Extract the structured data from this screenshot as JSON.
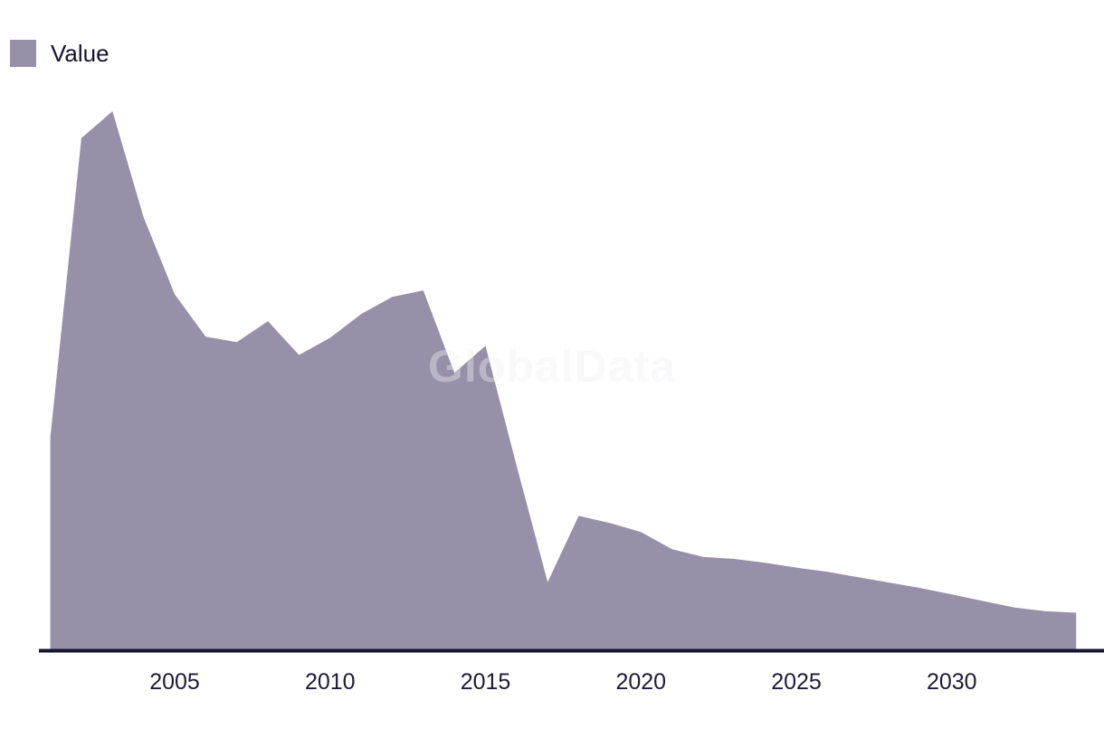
{
  "watermark": "GlobalData",
  "legend": {
    "label": "Value",
    "swatch_color": "#9790a8"
  },
  "colors": {
    "background": "#ffffff",
    "area_fill": "#9790a8",
    "axis_line": "#171430",
    "tick_text": "#1e1c35",
    "legend_text": "#15132a",
    "watermark_text": "rgba(240,238,245,0.40)"
  },
  "x_axis": {
    "tick_labels": [
      "2005",
      "2010",
      "2015",
      "2020",
      "2025",
      "2030"
    ]
  },
  "chart_data": {
    "type": "area",
    "title": "",
    "xlabel": "",
    "ylabel": "",
    "grid": false,
    "legend_position": "top-left",
    "xlim": [
      2001,
      2034
    ],
    "ylim": [
      0,
      100
    ],
    "x_ticks": [
      2005,
      2010,
      2015,
      2020,
      2025,
      2030
    ],
    "value_scale_note": "relative units, peak year 2003 = 100 (no y-axis shown in chart)",
    "series": [
      {
        "name": "Value",
        "color": "#9790a8",
        "x": [
          2001,
          2002,
          2003,
          2004,
          2005,
          2006,
          2007,
          2008,
          2009,
          2010,
          2011,
          2012,
          2013,
          2014,
          2015,
          2016,
          2017,
          2018,
          2019,
          2020,
          2021,
          2022,
          2023,
          2024,
          2025,
          2026,
          2027,
          2028,
          2029,
          2030,
          2031,
          2032,
          2033,
          2034
        ],
        "values": [
          39.4,
          95.0,
          100.0,
          80.3,
          66.0,
          58.1,
          57.1,
          61.0,
          54.7,
          57.9,
          62.3,
          65.5,
          66.7,
          51.4,
          56.4,
          34.1,
          12.5,
          24.8,
          23.5,
          21.8,
          18.6,
          17.2,
          16.8,
          16.1,
          15.2,
          14.4,
          13.4,
          12.4,
          11.4,
          10.2,
          9.0,
          7.8,
          7.1,
          6.8
        ]
      }
    ]
  }
}
